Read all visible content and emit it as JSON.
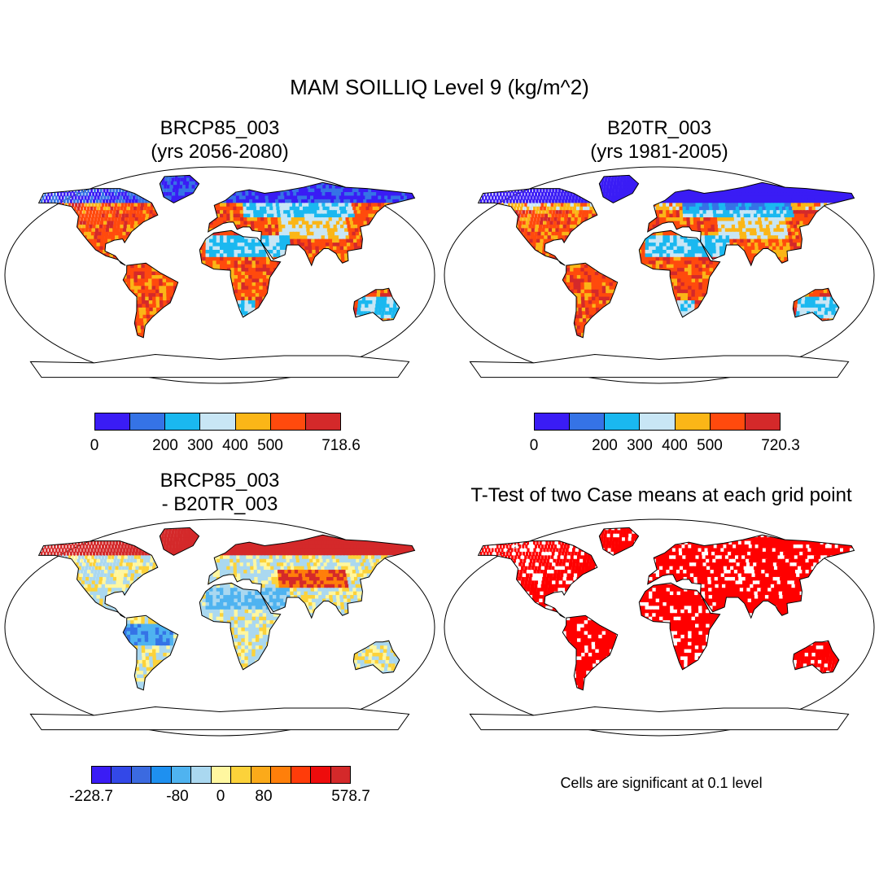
{
  "main_title": "MAM SOILLIQ Level 9 (kg/m^2)",
  "panels": {
    "top_left": {
      "title_line1": "BRCP85_003",
      "title_line2": "(yrs 2056-2080)"
    },
    "top_right": {
      "title_line1": "B20TR_003",
      "title_line2": "(yrs 1981-2005)"
    },
    "bottom_left": {
      "title_line1": "BRCP85_003",
      "title_line2": "- B20TR_003"
    },
    "bottom_right": {
      "title_line1": "T-Test of two Case means at each grid point"
    }
  },
  "colorbars": {
    "top_left": {
      "colors": [
        "#3a1cf5",
        "#3573e6",
        "#1ab8f0",
        "#c8e6f5",
        "#fbb617",
        "#ff4a0d",
        "#d4292a"
      ],
      "labels": [
        "0",
        "200",
        "300",
        "400",
        "500",
        "718.6"
      ]
    },
    "top_right": {
      "colors": [
        "#3a1cf5",
        "#3573e6",
        "#1ab8f0",
        "#c8e6f5",
        "#fbb617",
        "#ff4a0d",
        "#d4292a"
      ],
      "labels": [
        "0",
        "200",
        "300",
        "400",
        "500",
        "720.3"
      ]
    },
    "bottom_left": {
      "colors": [
        "#3a1cf5",
        "#3348e8",
        "#3b6ae0",
        "#1e90f0",
        "#4fb3f0",
        "#aad8f0",
        "#fff7a0",
        "#fcd23a",
        "#fbaa1a",
        "#ff7f0a",
        "#ff3c0a",
        "#ee0c0c",
        "#d4292a"
      ],
      "labels": [
        "-228.7",
        "-80",
        "0",
        "80",
        "578.7"
      ]
    }
  },
  "significance_note": "Cells are significant at 0.1 level",
  "significance_color": "#ff0000"
}
